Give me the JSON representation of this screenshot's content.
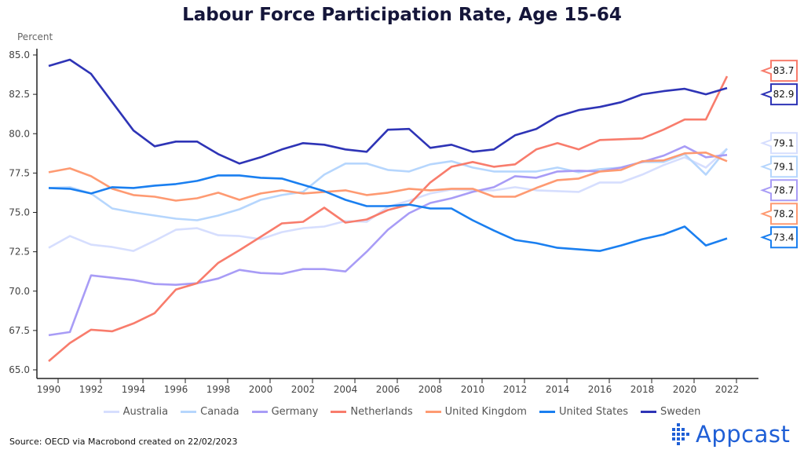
{
  "chart_data": {
    "type": "line",
    "title": "Labour Force Participation Rate,  Age 15-64",
    "ylabel": "Percent",
    "xlabel": "",
    "ylim": [
      65,
      85
    ],
    "yticks": [
      "65.0",
      "67.5",
      "70.0",
      "72.5",
      "75.0",
      "77.5",
      "80.0",
      "82.5",
      "85.0"
    ],
    "xticks": [
      "1990",
      "1992",
      "1994",
      "1996",
      "1998",
      "2000",
      "2002",
      "2004",
      "2006",
      "2008",
      "2010",
      "2012",
      "2014",
      "2016",
      "2018",
      "2020",
      "2022"
    ],
    "grid": false,
    "legend": "bottom",
    "x": [
      1990,
      1991,
      1992,
      1993,
      1994,
      1995,
      1996,
      1997,
      1998,
      1999,
      2000,
      2001,
      2002,
      2003,
      2004,
      2005,
      2006,
      2007,
      2008,
      2009,
      2010,
      2011,
      2012,
      2013,
      2014,
      2015,
      2016,
      2017,
      2018,
      2019,
      2020,
      2021,
      2022
    ],
    "series": [
      {
        "name": "Australia",
        "color": "#d6defe",
        "end_label": "79.1",
        "values": [
          72.75,
          73.5,
          72.95,
          72.8,
          72.55,
          73.2,
          73.9,
          74.0,
          73.55,
          73.5,
          73.3,
          73.75,
          74.0,
          74.1,
          74.45,
          74.4,
          75.35,
          75.75,
          76.2,
          76.45,
          76.4,
          76.4,
          76.6,
          76.4,
          76.35,
          76.3,
          76.9,
          76.9,
          77.4,
          78.0,
          78.5,
          77.85,
          79.05
        ]
      },
      {
        "name": "Canada",
        "color": "#b6d6fd",
        "end_label": "79.1",
        "values": [
          76.55,
          76.6,
          76.2,
          75.25,
          75.0,
          74.8,
          74.6,
          74.5,
          74.8,
          75.2,
          75.8,
          76.1,
          76.3,
          77.4,
          78.1,
          78.1,
          77.7,
          77.6,
          78.05,
          78.25,
          77.85,
          77.6,
          77.6,
          77.6,
          77.85,
          77.55,
          77.75,
          77.85,
          78.2,
          78.2,
          78.7,
          77.4,
          79.05
        ]
      },
      {
        "name": "Germany",
        "color": "#a89cf6",
        "end_label": "78.7",
        "values": [
          67.2,
          67.4,
          71.0,
          70.85,
          70.7,
          70.45,
          70.4,
          70.5,
          70.8,
          71.35,
          71.15,
          71.1,
          71.4,
          71.4,
          71.25,
          72.5,
          73.9,
          74.95,
          75.6,
          75.9,
          76.3,
          76.6,
          77.3,
          77.2,
          77.6,
          77.65,
          77.6,
          77.85,
          78.2,
          78.6,
          79.2,
          78.5,
          78.65
        ]
      },
      {
        "name": "Netherlands",
        "color": "#f87c6c",
        "end_label": "83.7",
        "values": [
          65.55,
          66.7,
          67.55,
          67.45,
          67.95,
          68.6,
          70.1,
          70.5,
          71.8,
          72.6,
          73.45,
          74.3,
          74.4,
          75.3,
          74.35,
          74.55,
          75.15,
          75.5,
          76.9,
          77.9,
          78.2,
          77.9,
          78.05,
          79.0,
          79.4,
          79.0,
          79.6,
          79.65,
          79.7,
          80.25,
          80.9,
          80.9,
          83.65
        ]
      },
      {
        "name": "United Kingdom",
        "color": "#fe9a72",
        "end_label": "78.2",
        "values": [
          77.55,
          77.8,
          77.3,
          76.5,
          76.1,
          76.0,
          75.75,
          75.9,
          76.25,
          75.8,
          76.2,
          76.4,
          76.2,
          76.3,
          76.4,
          76.1,
          76.25,
          76.5,
          76.4,
          76.5,
          76.5,
          76.0,
          76.0,
          76.55,
          77.05,
          77.15,
          77.6,
          77.7,
          78.25,
          78.3,
          78.75,
          78.8,
          78.25
        ]
      },
      {
        "name": "United States",
        "color": "#1a7ff0",
        "end_label": "73.4",
        "values": [
          76.55,
          76.5,
          76.2,
          76.6,
          76.55,
          76.7,
          76.8,
          77.0,
          77.35,
          77.35,
          77.2,
          77.15,
          76.75,
          76.35,
          75.8,
          75.4,
          75.4,
          75.5,
          75.25,
          75.25,
          74.5,
          73.85,
          73.25,
          73.05,
          72.75,
          72.65,
          72.55,
          72.9,
          73.3,
          73.6,
          74.1,
          72.9,
          73.35
        ]
      },
      {
        "name": "Sweden",
        "color": "#2e34b6",
        "end_label": "82.9",
        "values": [
          84.3,
          84.7,
          83.8,
          82.0,
          80.2,
          79.2,
          79.5,
          79.5,
          78.7,
          78.1,
          78.5,
          79.0,
          79.4,
          79.3,
          79.0,
          78.85,
          80.25,
          80.3,
          79.1,
          79.3,
          78.85,
          79.0,
          79.9,
          80.3,
          81.1,
          81.5,
          81.7,
          82.0,
          82.5,
          82.7,
          82.85,
          82.5,
          82.9
        ]
      }
    ]
  },
  "source": "Source: OECD via Macrobond created on 22/02/2023",
  "logo": {
    "text": "Appcast",
    "color": "#1f5fd6"
  }
}
